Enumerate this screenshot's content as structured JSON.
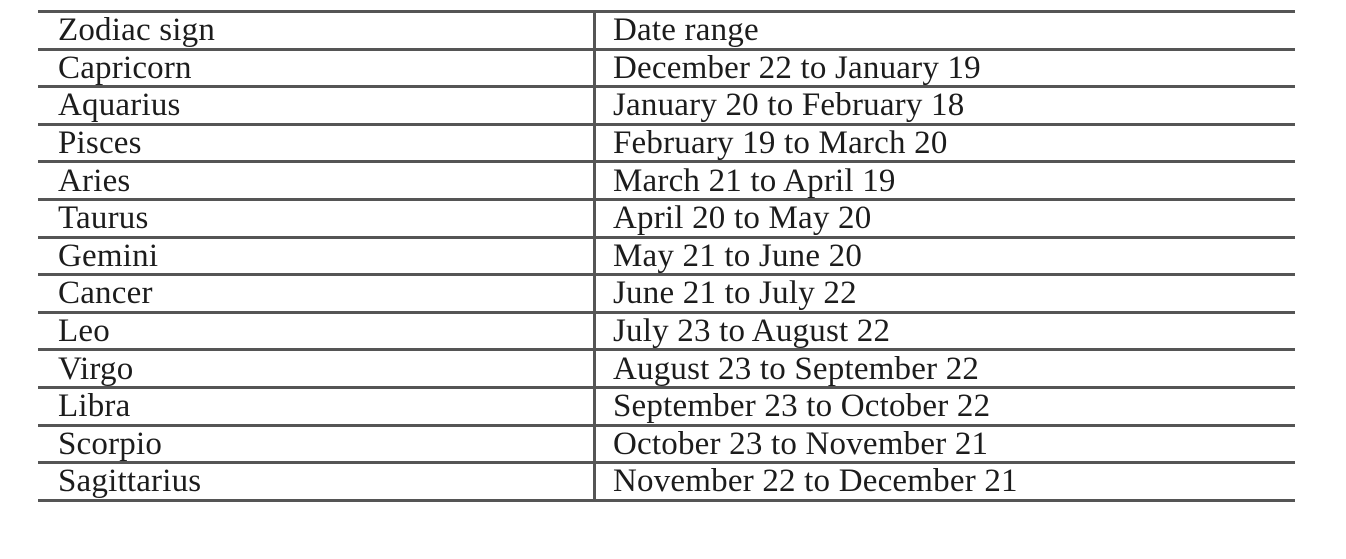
{
  "table": {
    "headers": [
      "Zodiac sign",
      "Date range"
    ],
    "rows": [
      [
        "Capricorn",
        "December 22 to January 19"
      ],
      [
        "Aquarius",
        "January 20 to February 18"
      ],
      [
        "Pisces",
        "February 19 to March 20"
      ],
      [
        "Aries",
        "March 21 to April 19"
      ],
      [
        "Taurus",
        "April 20 to May 20"
      ],
      [
        "Gemini",
        "May 21 to June 20"
      ],
      [
        "Cancer",
        "June 21 to July 22"
      ],
      [
        "Leo",
        "July 23 to August 22"
      ],
      [
        "Virgo",
        "August 23 to September 22"
      ],
      [
        "Libra",
        "September 23 to October 22"
      ],
      [
        "Scorpio",
        "October 23 to November 21"
      ],
      [
        "Sagittarius",
        "November 22 to December 21"
      ]
    ]
  }
}
